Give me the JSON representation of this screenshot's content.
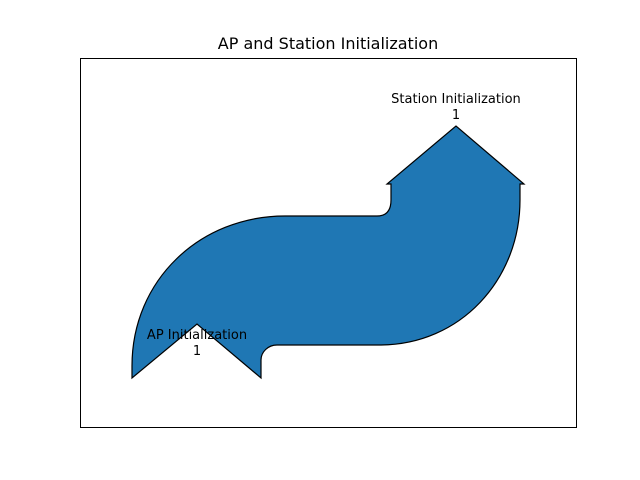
{
  "title": "AP and Station Initialization",
  "colors": {
    "flow_fill": "#1f77b4",
    "flow_stroke": "#000000",
    "axes_frame": "#000000",
    "background": "#ffffff"
  },
  "flows": {
    "input": {
      "label": "AP Initialization",
      "value": "1"
    },
    "output": {
      "label": "Station Initialization",
      "value": "1"
    }
  }
}
